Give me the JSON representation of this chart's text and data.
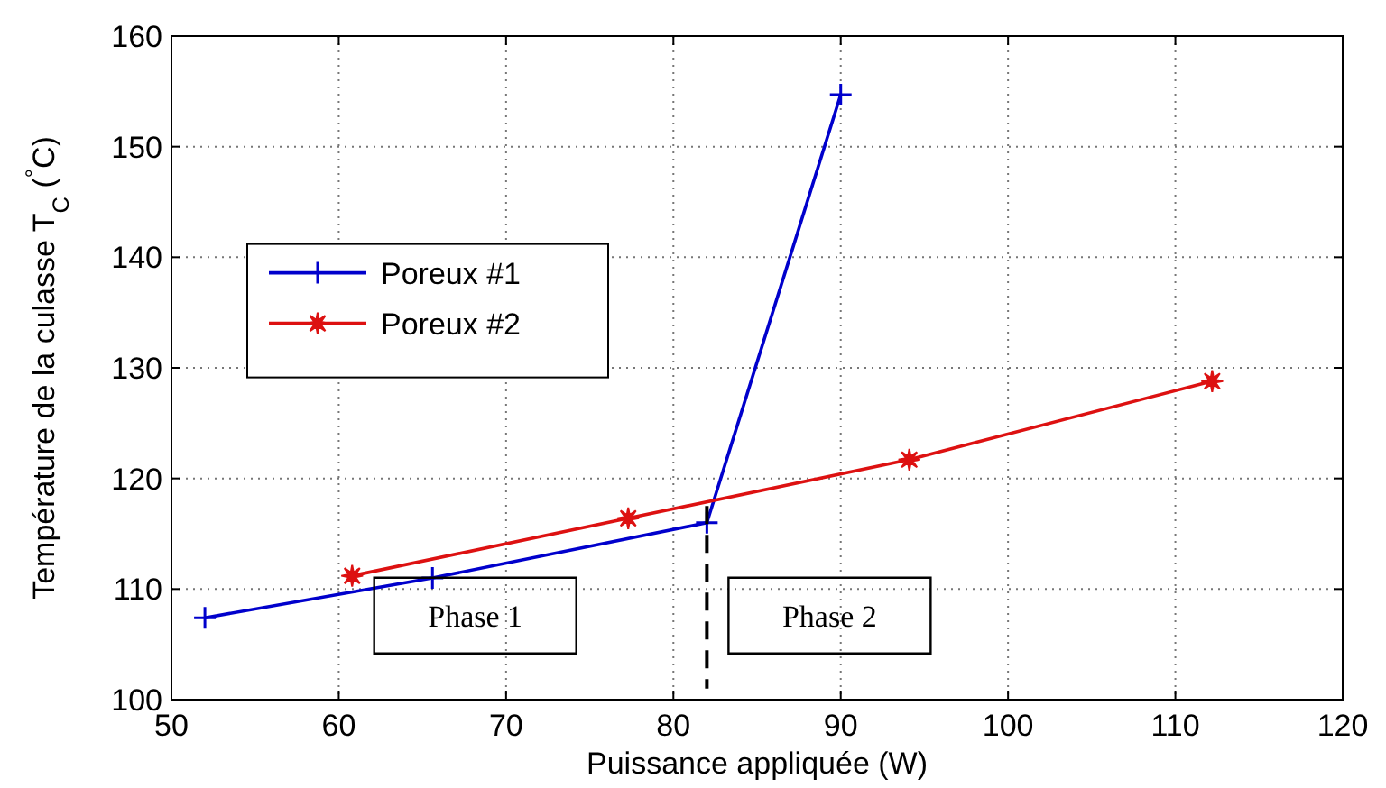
{
  "chart_data": {
    "type": "line",
    "xlabel": "Puissance appliquée (W)",
    "ylabel": "Température de la culasse T$_{C}$ ($^{°}$C)",
    "xlim": [
      50,
      120
    ],
    "xticks": [
      50,
      60,
      70,
      80,
      90,
      100,
      110,
      120
    ],
    "ylim": [
      100,
      160
    ],
    "yticks": [
      100,
      110,
      120,
      130,
      140,
      150,
      160
    ],
    "grid": true,
    "legend": "top left",
    "series": [
      {
        "name": "Poreux #1",
        "color": "#0000cc",
        "marker": "cross",
        "x": [
          52,
          65.6,
          82,
          90
        ],
        "values": [
          107.4,
          111,
          116,
          154.7
        ]
      },
      {
        "name": "Poreux #2",
        "color": "#dd1111",
        "marker": "star",
        "x": [
          60.8,
          77.3,
          94.1,
          112.2
        ],
        "values": [
          111.2,
          116.4,
          121.7,
          128.8
        ]
      }
    ],
    "ref_lines": [
      {
        "axis": "x",
        "value": 82,
        "color": "#000000",
        "line_style": "dashed"
      }
    ],
    "annotations": [
      "Phase 1",
      "Phase 2"
    ]
  }
}
